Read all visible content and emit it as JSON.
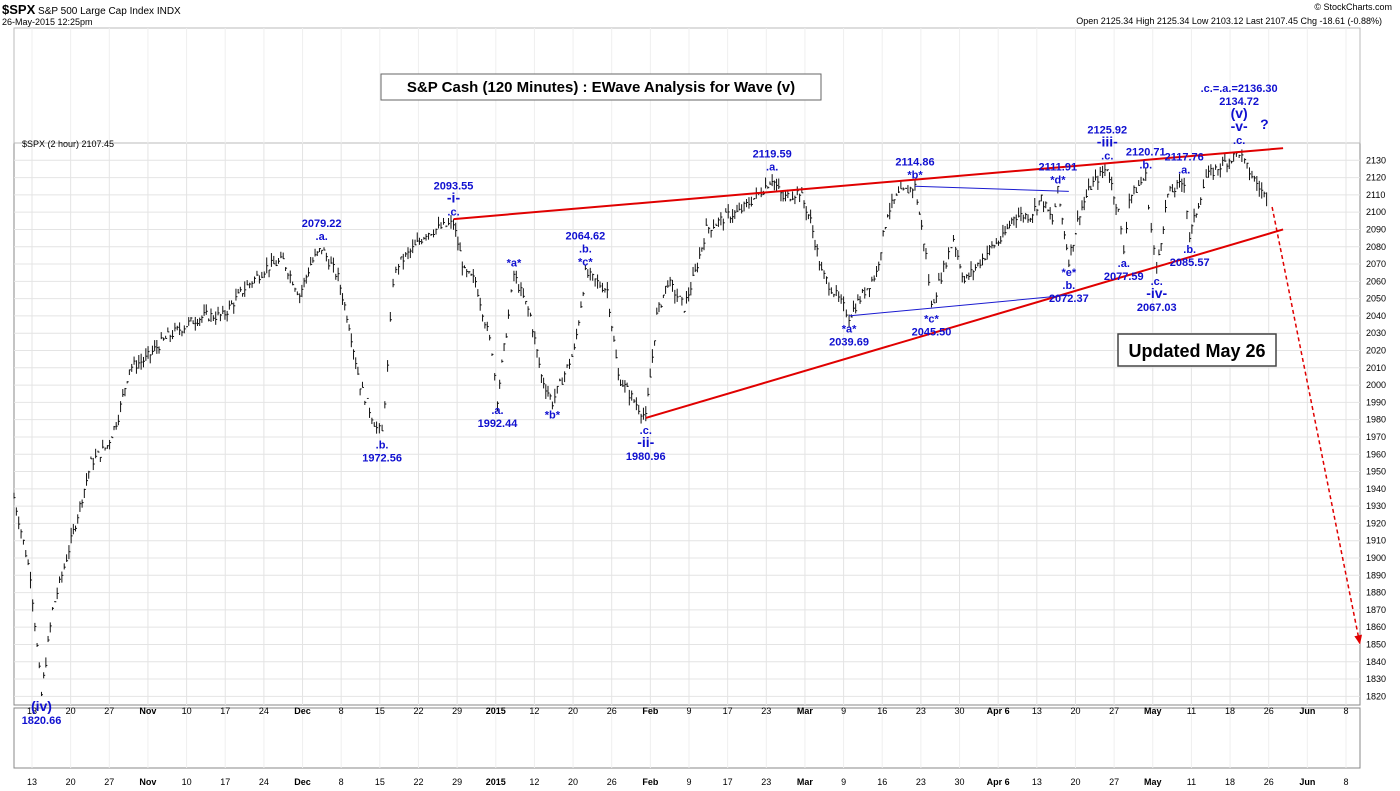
{
  "header": {
    "symbol": "$SPX",
    "name": "S&P 500 Large Cap Index",
    "exchange": "INDX",
    "timestamp": "26-May-2015 12:25pm",
    "brand": "© StockCharts.com",
    "quote": "Open 2125.34  High 2125.34  Low 2103.12  Last 2107.45  Chg -18.61 (-0.88%)",
    "series_label": "$SPX (2 hour) 2107.45"
  },
  "chart_data": {
    "type": "ohlc",
    "title": "S&P Cash (120 Minutes) : EWave Analysis for Wave (v)",
    "annotation_box": "Updated May 26",
    "ylim": [
      1815,
      2140
    ],
    "y_ticks": [
      1820,
      1830,
      1840,
      1850,
      1860,
      1870,
      1880,
      1890,
      1900,
      1910,
      1920,
      1930,
      1940,
      1950,
      1960,
      1970,
      1980,
      1990,
      2000,
      2010,
      2020,
      2030,
      2040,
      2050,
      2060,
      2070,
      2080,
      2090,
      2100,
      2110,
      2120,
      2130
    ],
    "x_ticks": [
      "13",
      "20",
      "27",
      "Nov",
      "10",
      "17",
      "24",
      "Dec",
      "8",
      "15",
      "22",
      "29",
      "2015",
      "12",
      "20",
      "26",
      "Feb",
      "9",
      "17",
      "23",
      "Mar",
      "9",
      "16",
      "23",
      "30",
      "Apr 6",
      "13",
      "20",
      "27",
      "May",
      "11",
      "18",
      "26",
      "Jun",
      "8"
    ],
    "series": [
      {
        "name": "$SPX (2 hour)",
        "points": [
          [
            "2014-10-10",
            1935
          ],
          [
            "2014-10-13",
            1890
          ],
          [
            "2014-10-15",
            1820.66
          ],
          [
            "2014-10-17",
            1870
          ],
          [
            "2014-10-20",
            1905
          ],
          [
            "2014-10-22",
            1930
          ],
          [
            "2014-10-24",
            1955
          ],
          [
            "2014-10-27",
            1965
          ],
          [
            "2014-10-29",
            1982
          ],
          [
            "2014-10-31",
            2010
          ],
          [
            "2014-11-03",
            2015
          ],
          [
            "2014-11-05",
            2022
          ],
          [
            "2014-11-07",
            2028
          ],
          [
            "2014-11-10",
            2034
          ],
          [
            "2014-11-12",
            2038
          ],
          [
            "2014-11-14",
            2040
          ],
          [
            "2014-11-17",
            2040
          ],
          [
            "2014-11-19",
            2048
          ],
          [
            "2014-11-21",
            2056
          ],
          [
            "2014-11-25",
            2068
          ],
          [
            "2014-11-28",
            2072
          ],
          [
            "2014-12-01",
            2052
          ],
          [
            "2014-12-03",
            2070
          ],
          [
            "2014-12-05",
            2079.22
          ],
          [
            "2014-12-08",
            2062
          ],
          [
            "2014-12-10",
            2035
          ],
          [
            "2014-12-12",
            2000
          ],
          [
            "2014-12-15",
            1975
          ],
          [
            "2014-12-16",
            1972.56
          ],
          [
            "2014-12-17",
            2010
          ],
          [
            "2014-12-18",
            2060
          ],
          [
            "2014-12-19",
            2070
          ],
          [
            "2014-12-22",
            2080
          ],
          [
            "2014-12-24",
            2088
          ],
          [
            "2014-12-29",
            2093.55
          ],
          [
            "2014-12-31",
            2065
          ],
          [
            "2015-01-02",
            2060
          ],
          [
            "2015-01-05",
            2020
          ],
          [
            "2015-01-06",
            1992.44
          ],
          [
            "2015-01-08",
            2040
          ],
          [
            "2015-01-09",
            2064
          ],
          [
            "2015-01-12",
            2040
          ],
          [
            "2015-01-14",
            2005
          ],
          [
            "2015-01-16",
            1990
          ],
          [
            "2015-01-20",
            2020
          ],
          [
            "2015-01-22",
            2064.62
          ],
          [
            "2015-01-26",
            2055
          ],
          [
            "2015-01-28",
            2005
          ],
          [
            "2015-01-30",
            1995
          ],
          [
            "2015-02-02",
            1980.96
          ],
          [
            "2015-02-04",
            2040
          ],
          [
            "2015-02-06",
            2060
          ],
          [
            "2015-02-09",
            2045
          ],
          [
            "2015-02-11",
            2065
          ],
          [
            "2015-02-13",
            2090
          ],
          [
            "2015-02-17",
            2098
          ],
          [
            "2015-02-19",
            2100
          ],
          [
            "2015-02-23",
            2112
          ],
          [
            "2015-02-25",
            2119.59
          ],
          [
            "2015-02-27",
            2108
          ],
          [
            "2015-03-02",
            2112
          ],
          [
            "2015-03-04",
            2095
          ],
          [
            "2015-03-06",
            2065
          ],
          [
            "2015-03-10",
            2045
          ],
          [
            "2015-03-11",
            2039.69
          ],
          [
            "2015-03-13",
            2050
          ],
          [
            "2015-03-16",
            2065
          ],
          [
            "2015-03-18",
            2100
          ],
          [
            "2015-03-20",
            2110
          ],
          [
            "2015-03-23",
            2114.86
          ],
          [
            "2015-03-25",
            2075
          ],
          [
            "2015-03-26",
            2045.5
          ],
          [
            "2015-03-30",
            2085
          ],
          [
            "2015-04-01",
            2060
          ],
          [
            "2015-04-03",
            2068
          ],
          [
            "2015-04-06",
            2080
          ],
          [
            "2015-04-08",
            2085
          ],
          [
            "2015-04-10",
            2098
          ],
          [
            "2015-04-13",
            2098
          ],
          [
            "2015-04-15",
            2108
          ],
          [
            "2015-04-17",
            2095
          ],
          [
            "2015-04-18",
            2111.91
          ],
          [
            "2015-04-20",
            2072.37
          ],
          [
            "2015-04-22",
            2100
          ],
          [
            "2015-04-24",
            2115
          ],
          [
            "2015-04-27",
            2125.92
          ],
          [
            "2015-04-29",
            2100
          ],
          [
            "2015-04-30",
            2077.59
          ],
          [
            "2015-05-01",
            2108
          ],
          [
            "2015-05-04",
            2120.71
          ],
          [
            "2015-05-05",
            2090
          ],
          [
            "2015-05-06",
            2067.03
          ],
          [
            "2015-05-08",
            2110
          ],
          [
            "2015-05-11",
            2117.76
          ],
          [
            "2015-05-12",
            2085.57
          ],
          [
            "2015-05-14",
            2110
          ],
          [
            "2015-05-15",
            2120
          ],
          [
            "2015-05-18",
            2128
          ],
          [
            "2015-05-20",
            2132
          ],
          [
            "2015-05-21",
            2134.72
          ],
          [
            "2015-05-22",
            2128
          ],
          [
            "2015-05-26",
            2107.45
          ]
        ]
      }
    ],
    "trendlines": [
      {
        "color": "#e00000",
        "from": [
          "2014-12-29",
          2096
        ],
        "to": [
          "2015-05-29",
          2137
        ]
      },
      {
        "color": "#e00000",
        "from": [
          "2015-02-02",
          1981
        ],
        "to": [
          "2015-05-29",
          2090
        ]
      },
      {
        "color": "#1a1ad0",
        "from": [
          "2015-03-11",
          2040
        ],
        "to": [
          "2015-04-20",
          2052
        ]
      },
      {
        "color": "#1a1ad0",
        "from": [
          "2015-03-23",
          2115
        ],
        "to": [
          "2015-04-20",
          2112
        ]
      }
    ],
    "projection": {
      "color": "#e00000",
      "from": [
        "2015-05-27",
        2103
      ],
      "to": [
        "2015-06-12",
        1850
      ]
    },
    "annotations": [
      {
        "date": "2014-10-15",
        "price": 1820.66,
        "lines": [
          "(iv)",
          "1820.66"
        ],
        "pos": "below"
      },
      {
        "date": "2014-12-05",
        "price": 2079.22,
        "lines": [
          "2079.22",
          ".a."
        ],
        "pos": "above"
      },
      {
        "date": "2014-12-16",
        "price": 1972.56,
        "lines": [
          ".b.",
          "1972.56"
        ],
        "pos": "below"
      },
      {
        "date": "2014-12-29",
        "price": 2093.55,
        "lines": [
          "2093.55",
          "-i-",
          ".c."
        ],
        "pos": "above"
      },
      {
        "date": "2015-01-06",
        "price": 1992.44,
        "lines": [
          ".a.",
          "1992.44"
        ],
        "pos": "below"
      },
      {
        "date": "2015-01-09",
        "price": 2064,
        "lines": [
          "*a*"
        ],
        "pos": "above"
      },
      {
        "date": "2015-01-16",
        "price": 1990,
        "lines": [
          "*b*"
        ],
        "pos": "below"
      },
      {
        "date": "2015-01-22",
        "price": 2064.62,
        "lines": [
          "2064.62",
          ".b.",
          "*c*"
        ],
        "pos": "above"
      },
      {
        "date": "2015-02-02",
        "price": 1980.96,
        "lines": [
          ".c.",
          "-ii-",
          "1980.96"
        ],
        "pos": "below"
      },
      {
        "date": "2015-02-25",
        "price": 2119.59,
        "lines": [
          "2119.59",
          ".a."
        ],
        "pos": "above"
      },
      {
        "date": "2015-03-11",
        "price": 2039.69,
        "lines": [
          "*a*",
          "2039.69"
        ],
        "pos": "below"
      },
      {
        "date": "2015-03-23",
        "price": 2114.86,
        "lines": [
          "2114.86",
          "*b*"
        ],
        "pos": "above"
      },
      {
        "date": "2015-03-26",
        "price": 2045.5,
        "lines": [
          "*c*",
          "2045.50"
        ],
        "pos": "below"
      },
      {
        "date": "2015-04-18",
        "price": 2111.91,
        "lines": [
          "2111.91",
          "*d*"
        ],
        "pos": "above"
      },
      {
        "date": "2015-04-20",
        "price": 2072.37,
        "lines": [
          "*e*",
          ".b.",
          "2072.37"
        ],
        "pos": "below"
      },
      {
        "date": "2015-04-27",
        "price": 2125.92,
        "lines": [
          "2125.92",
          "-iii-",
          ".c."
        ],
        "pos": "above"
      },
      {
        "date": "2015-04-30",
        "price": 2077.59,
        "lines": [
          ".a.",
          "2077.59"
        ],
        "pos": "below"
      },
      {
        "date": "2015-05-04",
        "price": 2120.71,
        "lines": [
          "2120.71",
          ".b."
        ],
        "pos": "above"
      },
      {
        "date": "2015-05-06",
        "price": 2067.03,
        "lines": [
          ".c.",
          "-iv-",
          "2067.03"
        ],
        "pos": "below"
      },
      {
        "date": "2015-05-11",
        "price": 2117.76,
        "lines": [
          "2117.76",
          ".a."
        ],
        "pos": "above"
      },
      {
        "date": "2015-05-12",
        "price": 2085.57,
        "lines": [
          ".b.",
          "2085.57"
        ],
        "pos": "below"
      },
      {
        "date": "2015-05-21",
        "price": 2134.72,
        "lines": [
          ".c.=.a.=2136.30",
          "2134.72",
          "(v)",
          "-v-",
          ".c."
        ],
        "pos": "above"
      },
      {
        "date": "2015-05-23",
        "price": 2132,
        "lines": [
          "?"
        ],
        "pos": "right"
      }
    ]
  }
}
